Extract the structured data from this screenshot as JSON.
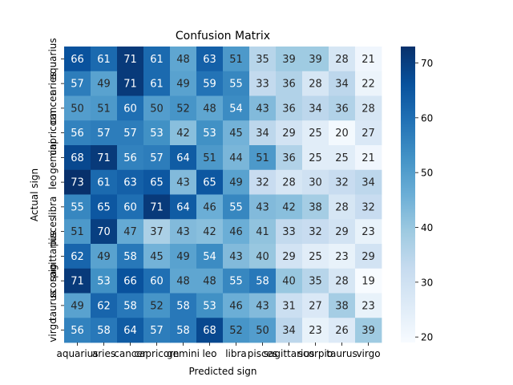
{
  "chart_data": {
    "type": "heatmap",
    "title": "Confusion Matrix",
    "xlabel": "Predicted sign",
    "ylabel": "Actual sign",
    "x_categories": [
      "aquarius",
      "aries",
      "cancer",
      "capricorn",
      "gemini",
      "leo",
      "libra",
      "pisces",
      "sagittarius",
      "scorpio",
      "taurus",
      "virgo"
    ],
    "y_categories": [
      "aquarius",
      "aries",
      "cancer",
      "capricorn",
      "gemini",
      "leo",
      "libra",
      "pisces",
      "sagittarius",
      "scorpio",
      "taurus",
      "virgo"
    ],
    "values": [
      [
        66,
        61,
        71,
        61,
        48,
        63,
        51,
        35,
        39,
        39,
        28,
        21
      ],
      [
        57,
        49,
        71,
        61,
        49,
        59,
        55,
        33,
        36,
        28,
        34,
        22
      ],
      [
        50,
        51,
        60,
        50,
        52,
        48,
        54,
        43,
        36,
        34,
        36,
        28
      ],
      [
        56,
        57,
        57,
        53,
        42,
        53,
        45,
        34,
        29,
        25,
        20,
        27
      ],
      [
        68,
        71,
        56,
        57,
        64,
        51,
        44,
        51,
        36,
        25,
        25,
        21
      ],
      [
        73,
        61,
        63,
        65,
        43,
        65,
        49,
        32,
        28,
        30,
        32,
        34
      ],
      [
        55,
        65,
        60,
        71,
        64,
        46,
        55,
        43,
        42,
        38,
        28,
        32
      ],
      [
        51,
        70,
        47,
        37,
        43,
        42,
        46,
        41,
        33,
        32,
        29,
        23
      ],
      [
        62,
        49,
        58,
        45,
        49,
        54,
        43,
        40,
        29,
        25,
        23,
        29
      ],
      [
        71,
        53,
        66,
        60,
        48,
        48,
        55,
        58,
        40,
        35,
        28,
        19
      ],
      [
        49,
        62,
        58,
        52,
        58,
        53,
        46,
        43,
        31,
        27,
        38,
        23
      ],
      [
        56,
        58,
        64,
        57,
        58,
        68,
        52,
        50,
        34,
        23,
        26,
        39
      ]
    ],
    "vmin": 19,
    "vmax": 73,
    "colorbar_ticks": [
      20,
      30,
      40,
      50,
      60,
      70
    ],
    "colormap": "Blues",
    "colors": {
      "low": "#f7fbff",
      "high": "#08306b",
      "text_dark": "#262626",
      "text_light": "#ffffff"
    }
  }
}
